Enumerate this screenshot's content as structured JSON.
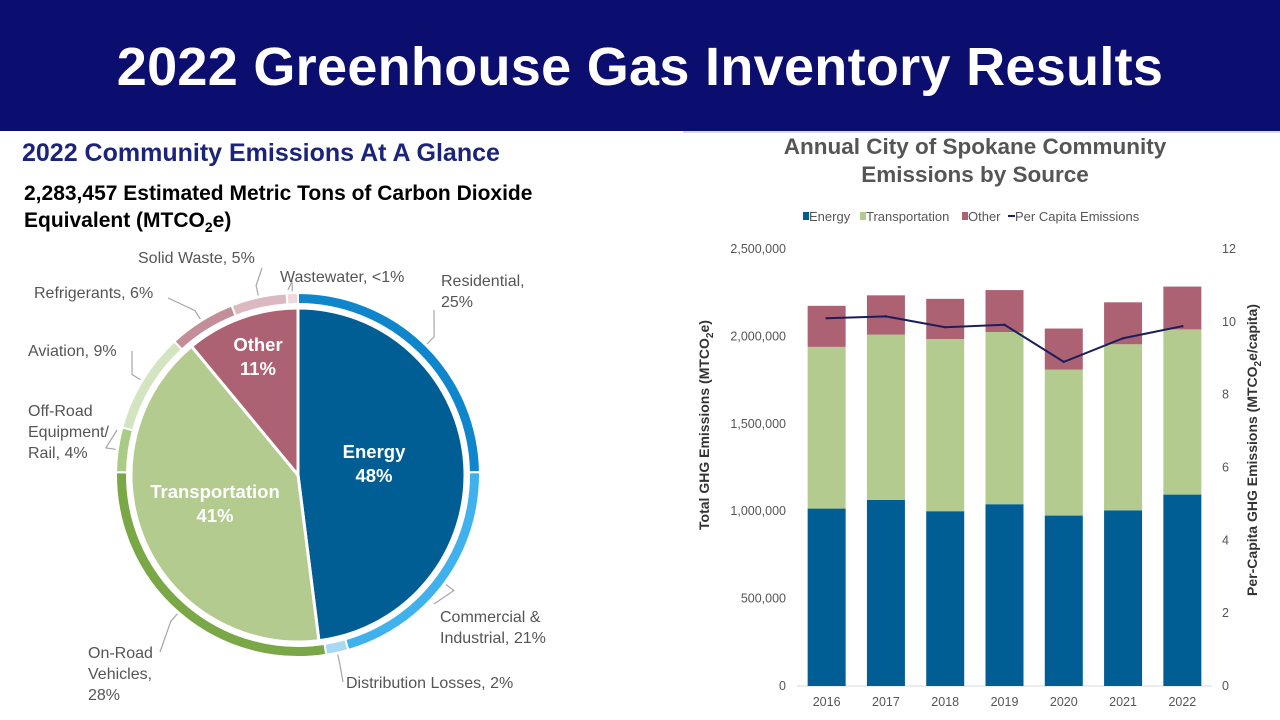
{
  "header": {
    "title": "2022 Greenhouse Gas Inventory Results"
  },
  "left": {
    "heading": "2022 Community Emissions At A Glance",
    "subheading_pre": "2,283,457 Estimated Metric Tons of Carbon Dioxide Equivalent (MTCO",
    "subheading_sub": "2",
    "subheading_post": "e)"
  },
  "chart_data": [
    {
      "type": "pie",
      "inner": [
        {
          "name": "Energy",
          "value": 48,
          "label": "48%",
          "color": "#005e94"
        },
        {
          "name": "Transportation",
          "value": 41,
          "label": "41%",
          "color": "#b4cb8f"
        },
        {
          "name": "Other",
          "value": 11,
          "label": "11%",
          "color": "#ad6273"
        }
      ],
      "outer": [
        {
          "name": "Residential",
          "value": 25,
          "label_lines": [
            "Residential,",
            "25%"
          ],
          "color": "#0f86cc"
        },
        {
          "name": "Commercial & Industrial",
          "value": 21,
          "label_lines": [
            "Commercial &",
            "Industrial, 21%"
          ],
          "color": "#3fb2ee"
        },
        {
          "name": "Distribution Losses",
          "value": 2,
          "label_lines": [
            "Distribution Losses, 2%"
          ],
          "color": "#a6d9f4"
        },
        {
          "name": "On-Road Vehicles",
          "value": 28,
          "label_lines": [
            "On-Road",
            "Vehicles,",
            "28%"
          ],
          "color": "#7aa846"
        },
        {
          "name": "Off-Road Equipment/Rail",
          "value": 4,
          "label_lines": [
            "Off-Road",
            "Equipment/",
            "Rail, 4%"
          ],
          "color": "#aacb86"
        },
        {
          "name": "Aviation",
          "value": 9,
          "label_lines": [
            "Aviation, 9%"
          ],
          "color": "#d3e4c0"
        },
        {
          "name": "Refrigerants",
          "value": 6,
          "label_lines": [
            "Refrigerants, 6%"
          ],
          "color": "#c48d9a"
        },
        {
          "name": "Solid Waste",
          "value": 5,
          "label_lines": [
            "Solid Waste, 5%"
          ],
          "color": "#dcb9c1"
        },
        {
          "name": "Wastewater",
          "value": 1,
          "label_lines": [
            "Wastewater, <1%"
          ],
          "color": "#ecd9de"
        }
      ]
    },
    {
      "type": "bar",
      "stacked": true,
      "title_lines": [
        "Annual City of Spokane Community",
        "Emissions by Source"
      ],
      "categories": [
        "2016",
        "2017",
        "2018",
        "2019",
        "2020",
        "2021",
        "2022"
      ],
      "series": [
        {
          "name": "Energy",
          "values": [
            1015000,
            1065000,
            1000000,
            1040000,
            975000,
            1005000,
            1095000
          ],
          "color": "#005e94"
        },
        {
          "name": "Transportation",
          "values": [
            925000,
            945000,
            985000,
            985000,
            835000,
            950000,
            945000
          ],
          "color": "#b4cb8f"
        },
        {
          "name": "Other",
          "values": [
            235000,
            225000,
            230000,
            240000,
            235000,
            240000,
            245000
          ],
          "color": "#ad6273"
        }
      ],
      "line_series": {
        "name": "Per Capita Emissions",
        "values": [
          10.1,
          10.15,
          9.85,
          9.92,
          8.9,
          9.55,
          9.88
        ],
        "color": "#1a1f5c"
      },
      "ylabel": "Total GHG Emissions (MTCO2e)",
      "y2label": "Per-Capita GHG Emissions (MTCO2e/capita)",
      "ylim": [
        0,
        2500000
      ],
      "yticks": [
        0,
        500000,
        1000000,
        1500000,
        2000000,
        2500000
      ],
      "ytick_labels": [
        "0",
        "500,000",
        "1,000,000",
        "1,500,000",
        "2,000,000",
        "2,500,000"
      ],
      "y2lim": [
        0,
        12
      ],
      "y2ticks": [
        0,
        2,
        4,
        6,
        8,
        10,
        12
      ],
      "legend_position": "top",
      "grid": false
    }
  ]
}
